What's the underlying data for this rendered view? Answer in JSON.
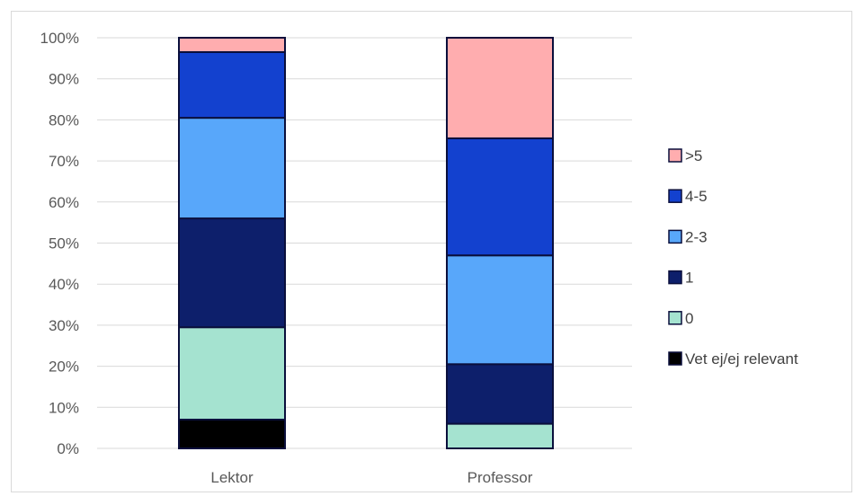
{
  "chart_data": {
    "type": "bar",
    "stacked": true,
    "normalized": true,
    "categories": [
      "Lektor",
      "Professor"
    ],
    "y_tick_labels": [
      "0%",
      "10%",
      "20%",
      "30%",
      "40%",
      "50%",
      "60%",
      "70%",
      "80%",
      "90%",
      "100%"
    ],
    "ylim": [
      0,
      100
    ],
    "grid": true,
    "legend_position": "right",
    "series": [
      {
        "name": "Vet ej/ej relevant",
        "color": "#000000",
        "values": [
          7,
          0
        ]
      },
      {
        "name": "0",
        "color": "#a5e3d0",
        "values": [
          22.5,
          6
        ]
      },
      {
        "name": "1",
        "color": "#0d1f6b",
        "values": [
          26.5,
          14.5
        ]
      },
      {
        "name": "2-3",
        "color": "#58a7fa",
        "values": [
          24.5,
          26.5
        ]
      },
      {
        "name": "4-5",
        "color": "#1341cf",
        "values": [
          16,
          28.5
        ]
      },
      {
        "name": ">5",
        "color": "#ffadaf",
        "values": [
          3.5,
          24.5
        ]
      }
    ]
  }
}
